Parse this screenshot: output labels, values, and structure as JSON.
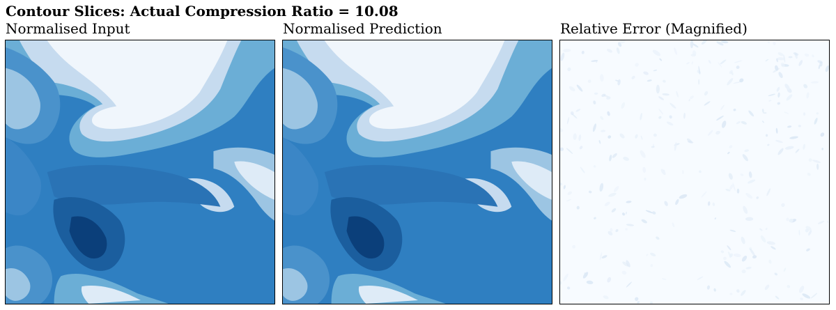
{
  "title": "Contour Slices: Actual Compression Ratio = 10.08",
  "chart_data": [
    {
      "type": "heatmap",
      "title": "Normalised Input",
      "colormap": "Blues",
      "colors": [
        "#f7fbff",
        "#c6dbef",
        "#6baed6",
        "#2171b5",
        "#08306b"
      ],
      "axes_visible": false
    },
    {
      "type": "heatmap",
      "title": "Normalised Prediction",
      "colormap": "Blues",
      "colors": [
        "#f7fbff",
        "#c6dbef",
        "#6baed6",
        "#2171b5",
        "#08306b"
      ],
      "axes_visible": false
    },
    {
      "type": "heatmap",
      "title": "Relative Error (Magnified)",
      "colormap": "Blues",
      "colors": [
        "#f7fbff",
        "#eaf2fb",
        "#dde9f6"
      ],
      "axes_visible": false
    }
  ]
}
